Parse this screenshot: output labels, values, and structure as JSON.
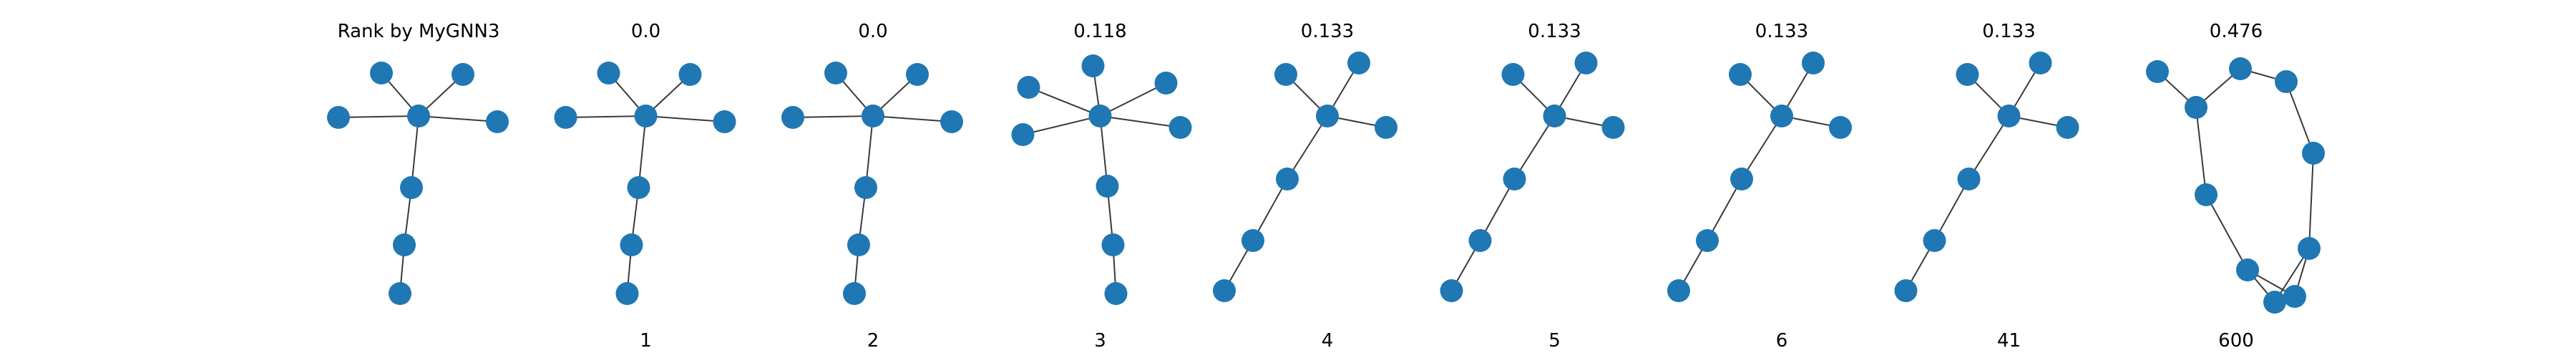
{
  "figure": {
    "row_title": "Rank by MyGNN3",
    "colors": {
      "node": "#1f77b4",
      "edge": "#3a3a3a",
      "text": "#000000",
      "background": "#ffffff"
    }
  },
  "panels": [
    {
      "id": "query",
      "score": "",
      "rank": "",
      "nodes": [
        [
          0,
          0
        ],
        [
          -0.52,
          -0.6
        ],
        [
          0.62,
          -0.58
        ],
        [
          -1.12,
          0.02
        ],
        [
          1.1,
          0.08
        ],
        [
          -0.1,
          1.0
        ],
        [
          -0.2,
          1.8
        ],
        [
          -0.26,
          2.48
        ]
      ],
      "edges": [
        [
          0,
          1
        ],
        [
          0,
          2
        ],
        [
          0,
          3
        ],
        [
          0,
          4
        ],
        [
          0,
          5
        ],
        [
          5,
          6
        ],
        [
          6,
          7
        ]
      ]
    },
    {
      "id": "rank-1",
      "score": "0.0",
      "rank": "1",
      "nodes": [
        [
          0,
          0
        ],
        [
          -0.52,
          -0.6
        ],
        [
          0.62,
          -0.58
        ],
        [
          -1.12,
          0.02
        ],
        [
          1.1,
          0.08
        ],
        [
          -0.1,
          1.0
        ],
        [
          -0.2,
          1.8
        ],
        [
          -0.26,
          2.48
        ]
      ],
      "edges": [
        [
          0,
          1
        ],
        [
          0,
          2
        ],
        [
          0,
          3
        ],
        [
          0,
          4
        ],
        [
          0,
          5
        ],
        [
          5,
          6
        ],
        [
          6,
          7
        ]
      ]
    },
    {
      "id": "rank-2",
      "score": "0.0",
      "rank": "2",
      "nodes": [
        [
          0,
          0
        ],
        [
          -0.52,
          -0.6
        ],
        [
          0.62,
          -0.58
        ],
        [
          -1.12,
          0.02
        ],
        [
          1.1,
          0.08
        ],
        [
          -0.1,
          1.0
        ],
        [
          -0.2,
          1.8
        ],
        [
          -0.26,
          2.48
        ]
      ],
      "edges": [
        [
          0,
          1
        ],
        [
          0,
          2
        ],
        [
          0,
          3
        ],
        [
          0,
          4
        ],
        [
          0,
          5
        ],
        [
          5,
          6
        ],
        [
          6,
          7
        ]
      ]
    },
    {
      "id": "rank-3",
      "score": "0.118",
      "rank": "3",
      "nodes": [
        [
          0,
          0
        ],
        [
          -1.0,
          -0.4
        ],
        [
          -0.1,
          -0.7
        ],
        [
          0.92,
          -0.46
        ],
        [
          -1.08,
          0.26
        ],
        [
          1.12,
          0.16
        ],
        [
          0.1,
          0.98
        ],
        [
          0.18,
          1.8
        ],
        [
          0.22,
          2.48
        ]
      ],
      "edges": [
        [
          0,
          1
        ],
        [
          0,
          2
        ],
        [
          0,
          3
        ],
        [
          0,
          4
        ],
        [
          0,
          5
        ],
        [
          0,
          6
        ],
        [
          6,
          7
        ],
        [
          7,
          8
        ]
      ]
    },
    {
      "id": "rank-4",
      "score": "0.133",
      "rank": "4",
      "nodes": [
        [
          0,
          0
        ],
        [
          -0.58,
          -0.58
        ],
        [
          0.44,
          -0.74
        ],
        [
          0.82,
          0.16
        ],
        [
          -0.56,
          0.88
        ],
        [
          -1.04,
          1.74
        ],
        [
          -1.44,
          2.44
        ]
      ],
      "edges": [
        [
          0,
          1
        ],
        [
          0,
          2
        ],
        [
          0,
          3
        ],
        [
          0,
          4
        ],
        [
          4,
          5
        ],
        [
          5,
          6
        ]
      ]
    },
    {
      "id": "rank-5",
      "score": "0.133",
      "rank": "5",
      "nodes": [
        [
          0,
          0
        ],
        [
          -0.58,
          -0.58
        ],
        [
          0.44,
          -0.74
        ],
        [
          0.82,
          0.16
        ],
        [
          -0.56,
          0.88
        ],
        [
          -1.04,
          1.74
        ],
        [
          -1.44,
          2.44
        ]
      ],
      "edges": [
        [
          0,
          1
        ],
        [
          0,
          2
        ],
        [
          0,
          3
        ],
        [
          0,
          4
        ],
        [
          4,
          5
        ],
        [
          5,
          6
        ]
      ]
    },
    {
      "id": "rank-6",
      "score": "0.133",
      "rank": "6",
      "nodes": [
        [
          0,
          0
        ],
        [
          -0.58,
          -0.58
        ],
        [
          0.44,
          -0.74
        ],
        [
          0.82,
          0.16
        ],
        [
          -0.56,
          0.88
        ],
        [
          -1.04,
          1.74
        ],
        [
          -1.44,
          2.44
        ]
      ],
      "edges": [
        [
          0,
          1
        ],
        [
          0,
          2
        ],
        [
          0,
          3
        ],
        [
          0,
          4
        ],
        [
          4,
          5
        ],
        [
          5,
          6
        ]
      ]
    },
    {
      "id": "rank-41",
      "score": "0.133",
      "rank": "41",
      "nodes": [
        [
          0,
          0
        ],
        [
          -0.58,
          -0.58
        ],
        [
          0.44,
          -0.74
        ],
        [
          0.82,
          0.16
        ],
        [
          -0.56,
          0.88
        ],
        [
          -1.04,
          1.74
        ],
        [
          -1.44,
          2.44
        ]
      ],
      "edges": [
        [
          0,
          1
        ],
        [
          0,
          2
        ],
        [
          0,
          3
        ],
        [
          0,
          4
        ],
        [
          4,
          5
        ],
        [
          5,
          6
        ]
      ]
    },
    {
      "id": "rank-600",
      "score": "0.476",
      "rank": "600",
      "nodes": [
        [
          -1.1,
          -0.62
        ],
        [
          -0.56,
          -0.12
        ],
        [
          0.06,
          -0.66
        ],
        [
          0.7,
          -0.48
        ],
        [
          1.08,
          0.52
        ],
        [
          -0.42,
          1.1
        ],
        [
          1.02,
          1.85
        ],
        [
          0.16,
          2.15
        ],
        [
          0.82,
          2.52
        ],
        [
          0.54,
          2.6
        ]
      ],
      "edges": [
        [
          0,
          1
        ],
        [
          1,
          2
        ],
        [
          2,
          3
        ],
        [
          3,
          4
        ],
        [
          4,
          6
        ],
        [
          6,
          9
        ],
        [
          6,
          8
        ],
        [
          1,
          5
        ],
        [
          5,
          7
        ],
        [
          7,
          8
        ],
        [
          7,
          9
        ]
      ]
    }
  ]
}
